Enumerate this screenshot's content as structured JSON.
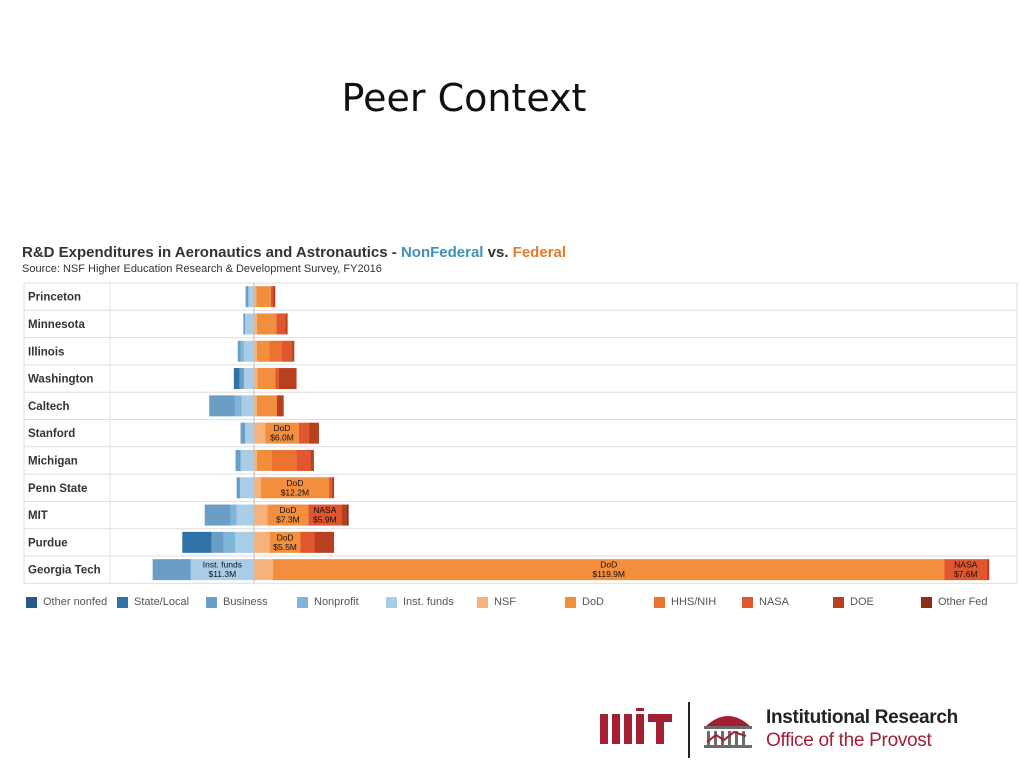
{
  "slide": {
    "title": "Peer Context"
  },
  "chart_data": {
    "type": "bar",
    "title_parts": [
      "R&D Expenditures in Aeronautics and Astronautics - ",
      "NonFederal",
      " vs. ",
      "Federal"
    ],
    "subtitle": "Source: NSF Higher Education Research & Development Survey, FY2016",
    "units": "$M",
    "categories": [
      "Princeton",
      "Minnesota",
      "Illinois",
      "Washington",
      "Caltech",
      "Stanford",
      "Michigan",
      "Penn State",
      "MIT",
      "Purdue",
      "Georgia Tech"
    ],
    "nonfederal_series": [
      {
        "name": "Other nonfed",
        "color": "#2a5783",
        "values": [
          0,
          0,
          0,
          0,
          0,
          0,
          0,
          0,
          0,
          0,
          0
        ]
      },
      {
        "name": "State/Local",
        "color": "#2f72a8",
        "values": [
          0,
          0,
          0,
          1.0,
          0,
          0,
          0,
          0,
          0,
          5.2,
          0
        ]
      },
      {
        "name": "Business",
        "color": "#6a9ec5",
        "values": [
          0.5,
          0.3,
          0.5,
          0.8,
          4.6,
          0.8,
          0.9,
          0.6,
          4.6,
          2.2,
          6.8
        ]
      },
      {
        "name": "Nonprofit",
        "color": "#7fb5d8",
        "values": [
          0,
          0,
          0.6,
          0,
          1.2,
          0,
          0,
          0,
          1.1,
          2.0,
          0
        ]
      },
      {
        "name": "Inst. funds",
        "color": "#a9cde6",
        "values": [
          1.0,
          1.6,
          1.8,
          1.8,
          2.2,
          1.6,
          2.4,
          2.5,
          3.1,
          3.4,
          11.3
        ]
      }
    ],
    "federal_series": [
      {
        "name": "NSF",
        "color": "#f6b27a",
        "values": [
          0.4,
          0.5,
          0.5,
          0.6,
          0.5,
          2.0,
          0.5,
          1.2,
          2.4,
          2.8,
          3.4
        ]
      },
      {
        "name": "DoD",
        "color": "#f28e3c",
        "values": [
          2.6,
          3.5,
          2.2,
          3.2,
          3.6,
          6.0,
          2.6,
          12.2,
          7.3,
          5.5,
          119.9
        ]
      },
      {
        "name": "HHS/NIH",
        "color": "#ec7230",
        "values": [
          0,
          0,
          2.3,
          0,
          0,
          0,
          4.5,
          0,
          0,
          0,
          0
        ]
      },
      {
        "name": "NASA",
        "color": "#e0562e",
        "values": [
          0.4,
          1.6,
          1.8,
          0.6,
          0,
          1.8,
          2.5,
          0.5,
          5.9,
          2.5,
          7.6
        ]
      },
      {
        "name": "DOE",
        "color": "#b8401f",
        "values": [
          0.4,
          0.4,
          0.4,
          3.2,
          1.2,
          1.8,
          0.6,
          0.4,
          0.9,
          3.5,
          0.4
        ]
      },
      {
        "name": "Other Fed",
        "color": "#8a2e1a",
        "values": [
          0,
          0,
          0,
          0,
          0,
          0,
          0,
          0,
          0.4,
          0,
          0
        ]
      }
    ],
    "annotations": [
      {
        "row": "Stanford",
        "series": "DoD",
        "lines": [
          "DoD",
          "$6.0M"
        ]
      },
      {
        "row": "Penn State",
        "series": "DoD",
        "lines": [
          "DoD",
          "$12.2M"
        ]
      },
      {
        "row": "MIT",
        "series": "DoD",
        "lines": [
          "DoD",
          "$7.3M"
        ]
      },
      {
        "row": "MIT",
        "series": "NASA",
        "lines": [
          "NASA",
          "$5.9M"
        ]
      },
      {
        "row": "Purdue",
        "series": "DoD",
        "lines": [
          "DoD",
          "$5.5M"
        ]
      },
      {
        "row": "Georgia Tech",
        "series": "Inst. funds",
        "lines": [
          "Inst. funds",
          "$11.3M"
        ]
      },
      {
        "row": "Georgia Tech",
        "series": "DoD",
        "lines": [
          "DoD",
          "$119.9M"
        ]
      },
      {
        "row": "Georgia Tech",
        "series": "NASA",
        "lines": [
          "NASA",
          "$7.6M"
        ]
      }
    ],
    "legend": [
      "Other nonfed",
      "State/Local",
      "Business",
      "Nonprofit",
      "Inst. funds",
      "NSF",
      "DoD",
      "HHS/NIH",
      "NASA",
      "DOE",
      "Other Fed"
    ],
    "legend_position": "bottom",
    "grid": "horizontal"
  },
  "logo": {
    "mark": "mit-logo",
    "icon": "dome-building-icon",
    "line1": "Institutional Research",
    "line2": "Office of the Provost",
    "color": "#a31f34"
  }
}
